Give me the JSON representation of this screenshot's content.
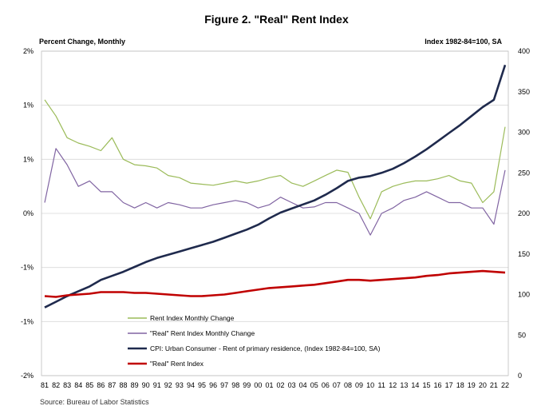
{
  "chart_data": {
    "type": "line",
    "title": "Figure 2. \"Real\" Rent Index",
    "ylabel_left": "Percent Change, Monthly",
    "ylabel_right": "Index 1982-84=100, SA",
    "source": "Source: Bureau of Labor Statistics",
    "y_left_ticks": [
      "2%",
      "1%",
      "1%",
      "0%",
      "-1%",
      "-1%",
      "-2%"
    ],
    "y_left_range": [
      -1.5,
      1.5
    ],
    "y_right_ticks": [
      "400",
      "350",
      "300",
      "250",
      "200",
      "150",
      "100",
      "50",
      "0"
    ],
    "y_right_range": [
      0,
      400
    ],
    "x_categories": [
      "81",
      "82",
      "83",
      "84",
      "85",
      "86",
      "87",
      "88",
      "89",
      "90",
      "91",
      "92",
      "93",
      "94",
      "95",
      "96",
      "97",
      "98",
      "99",
      "00",
      "01",
      "02",
      "03",
      "04",
      "05",
      "06",
      "07",
      "08",
      "09",
      "10",
      "11",
      "12",
      "13",
      "14",
      "15",
      "16",
      "17",
      "18",
      "19",
      "20",
      "21",
      "22"
    ],
    "series": [
      {
        "name": "Rent Index Monthly Change",
        "axis": "left",
        "color": "#9bbb59",
        "values": [
          1.05,
          0.9,
          0.7,
          0.65,
          0.62,
          0.58,
          0.7,
          0.5,
          0.45,
          0.44,
          0.42,
          0.35,
          0.33,
          0.28,
          0.27,
          0.26,
          0.28,
          0.3,
          0.28,
          0.3,
          0.33,
          0.35,
          0.28,
          0.25,
          0.3,
          0.35,
          0.4,
          0.38,
          0.15,
          -0.05,
          0.2,
          0.25,
          0.28,
          0.3,
          0.3,
          0.32,
          0.35,
          0.3,
          0.28,
          0.1,
          0.2,
          0.8
        ]
      },
      {
        "name": "\"Real\" Rent Index Monthly Change",
        "axis": "left",
        "color": "#8064a2",
        "values": [
          0.1,
          0.6,
          0.45,
          0.25,
          0.3,
          0.2,
          0.2,
          0.1,
          0.05,
          0.1,
          0.05,
          0.1,
          0.08,
          0.05,
          0.05,
          0.08,
          0.1,
          0.12,
          0.1,
          0.05,
          0.08,
          0.15,
          0.1,
          0.05,
          0.06,
          0.1,
          0.1,
          0.05,
          0.0,
          -0.2,
          0.0,
          0.05,
          0.12,
          0.15,
          0.2,
          0.15,
          0.1,
          0.1,
          0.05,
          0.05,
          -0.1,
          0.4
        ]
      },
      {
        "name": "CPI: Urban Consumer - Rent of primary residence, (Index 1982-84=100, SA)",
        "axis": "right",
        "color": "#1f2a4d",
        "values": [
          84,
          91,
          98,
          104,
          110,
          118,
          123,
          128,
          134,
          140,
          145,
          149,
          153,
          157,
          161,
          165,
          170,
          175,
          180,
          186,
          194,
          201,
          206,
          211,
          216,
          223,
          231,
          240,
          244,
          246,
          250,
          255,
          262,
          270,
          279,
          289,
          299,
          309,
          320,
          331,
          340,
          383
        ]
      },
      {
        "name": "\"Real\" Rent Index",
        "axis": "right",
        "color": "#c00000",
        "values": [
          98,
          97,
          99,
          100,
          101,
          103,
          103,
          103,
          102,
          102,
          101,
          100,
          99,
          98,
          98,
          99,
          100,
          102,
          104,
          106,
          108,
          109,
          110,
          111,
          112,
          114,
          116,
          118,
          118,
          117,
          118,
          119,
          120,
          121,
          123,
          124,
          126,
          127,
          128,
          129,
          128,
          127
        ]
      }
    ]
  }
}
